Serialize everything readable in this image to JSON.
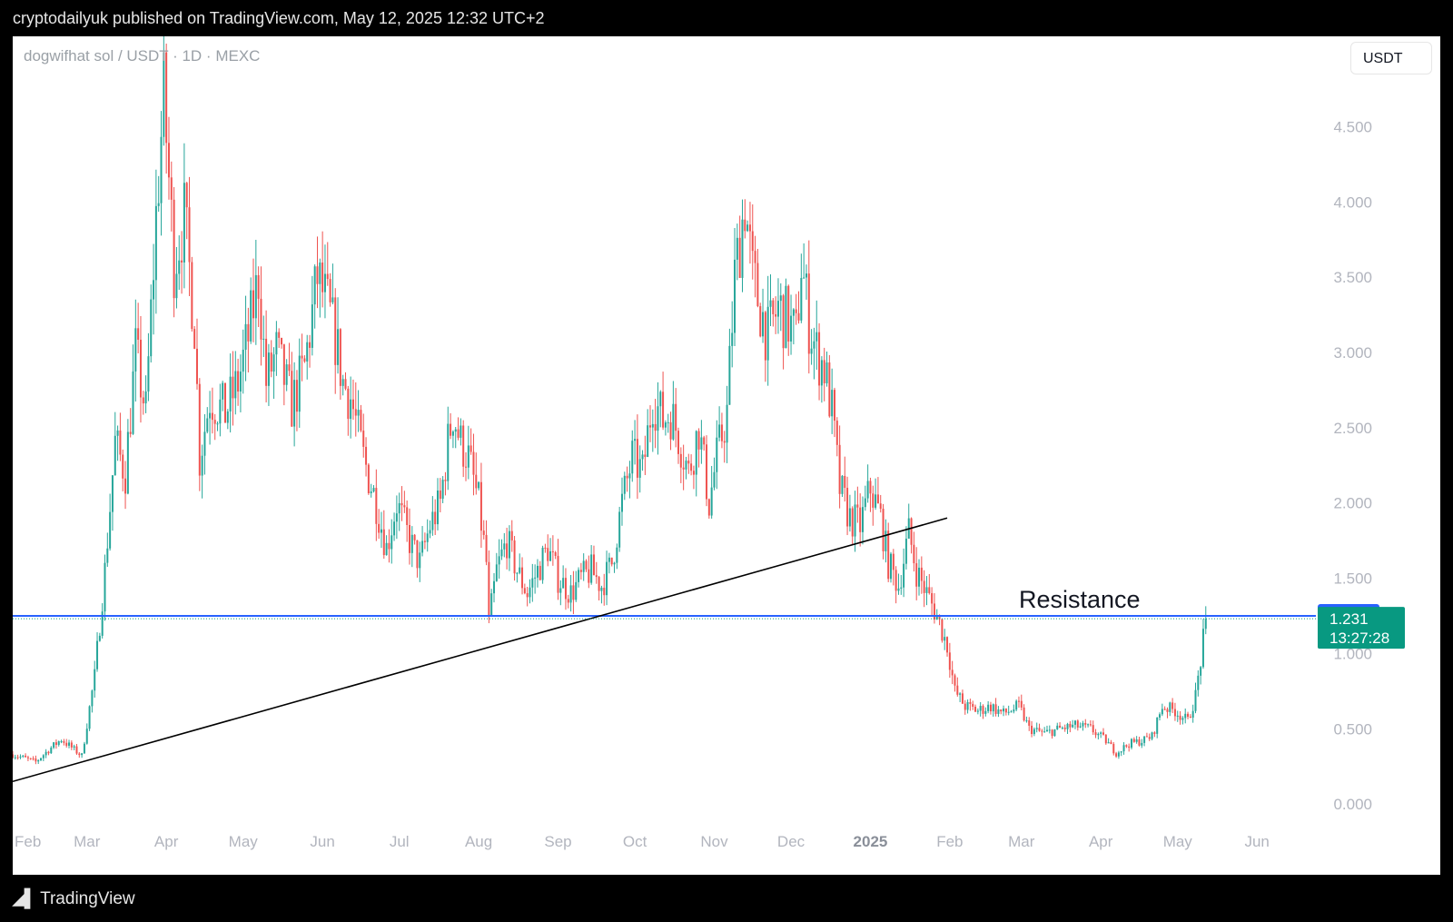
{
  "header": {
    "published_by": "cryptodailyuk published on TradingView.com, May 12, 2025 12:32 UTC+2"
  },
  "symbol": {
    "title": "dogwifhat sol / USDT · 1D · MEXC"
  },
  "currency_button": "USDT",
  "footer": {
    "brand": "TradingView"
  },
  "colors": {
    "up": "#26a69a",
    "down": "#ef5350",
    "resistance": "#2962ff",
    "trendline": "#000000",
    "price_badge": "#089981",
    "axis_text": "#b2b5be"
  },
  "chart_data": {
    "type": "candlestick",
    "title": "",
    "xlabel": "",
    "ylabel": "",
    "ylim": [
      -0.15,
      5.1
    ],
    "x_tick_labels": [
      "Feb",
      "Mar",
      "Apr",
      "May",
      "Jun",
      "Jul",
      "Aug",
      "Sep",
      "Oct",
      "Nov",
      "Dec",
      "2025",
      "Feb",
      "Mar",
      "Apr",
      "May",
      "Jun"
    ],
    "y_tick_values": [
      0.0,
      0.5,
      1.0,
      1.5,
      2.0,
      2.5,
      3.0,
      3.5,
      4.0,
      4.5
    ],
    "y_tick_labels": [
      "0.000",
      "0.500",
      "1.000",
      "1.500",
      "2.000",
      "2.500",
      "3.000",
      "3.500",
      "4.000",
      "4.500"
    ],
    "x_range": [
      "2024-02-01",
      "2025-06-24"
    ],
    "close_series": [
      [
        "2024-02-01",
        0.33
      ],
      [
        "2024-02-10",
        0.28
      ],
      [
        "2024-02-15",
        0.36
      ],
      [
        "2024-02-20",
        0.43
      ],
      [
        "2024-02-28",
        0.32
      ],
      [
        "2024-03-04",
        0.85
      ],
      [
        "2024-03-08",
        1.55
      ],
      [
        "2024-03-12",
        2.4
      ],
      [
        "2024-03-16",
        2.2
      ],
      [
        "2024-03-20",
        3.0
      ],
      [
        "2024-03-24",
        2.6
      ],
      [
        "2024-03-28",
        3.9
      ],
      [
        "2024-03-31",
        4.7
      ],
      [
        "2024-04-04",
        3.6
      ],
      [
        "2024-04-08",
        3.9
      ],
      [
        "2024-04-12",
        3.2
      ],
      [
        "2024-04-14",
        2.3
      ],
      [
        "2024-04-18",
        2.7
      ],
      [
        "2024-04-24",
        2.6
      ],
      [
        "2024-04-29",
        2.8
      ],
      [
        "2024-05-03",
        3.1
      ],
      [
        "2024-05-07",
        3.5
      ],
      [
        "2024-05-10",
        2.8
      ],
      [
        "2024-05-14",
        3.0
      ],
      [
        "2024-05-20",
        2.65
      ],
      [
        "2024-05-25",
        2.9
      ],
      [
        "2024-05-30",
        3.5
      ],
      [
        "2024-06-03",
        3.3
      ],
      [
        "2024-06-06",
        3.1
      ],
      [
        "2024-06-09",
        2.8
      ],
      [
        "2024-06-12",
        2.7
      ],
      [
        "2024-06-17",
        2.3
      ],
      [
        "2024-06-22",
        2.0
      ],
      [
        "2024-06-26",
        1.7
      ],
      [
        "2024-06-30",
        2.0
      ],
      [
        "2024-07-05",
        1.75
      ],
      [
        "2024-07-09",
        1.6
      ],
      [
        "2024-07-13",
        1.85
      ],
      [
        "2024-07-17",
        2.0
      ],
      [
        "2024-07-20",
        2.4
      ],
      [
        "2024-07-22",
        2.6
      ],
      [
        "2024-07-25",
        2.4
      ],
      [
        "2024-07-28",
        2.3
      ],
      [
        "2024-08-01",
        2.0
      ],
      [
        "2024-08-04",
        1.6
      ],
      [
        "2024-08-05",
        1.2
      ],
      [
        "2024-08-08",
        1.55
      ],
      [
        "2024-08-12",
        1.75
      ],
      [
        "2024-08-16",
        1.55
      ],
      [
        "2024-08-20",
        1.4
      ],
      [
        "2024-08-24",
        1.55
      ],
      [
        "2024-08-28",
        1.7
      ],
      [
        "2024-09-01",
        1.5
      ],
      [
        "2024-09-06",
        1.4
      ],
      [
        "2024-09-10",
        1.5
      ],
      [
        "2024-09-14",
        1.55
      ],
      [
        "2024-09-18",
        1.45
      ],
      [
        "2024-09-22",
        1.6
      ],
      [
        "2024-09-26",
        2.0
      ],
      [
        "2024-09-30",
        2.3
      ],
      [
        "2024-10-04",
        2.2
      ],
      [
        "2024-10-08",
        2.7
      ],
      [
        "2024-10-12",
        2.55
      ],
      [
        "2024-10-15",
        2.6
      ],
      [
        "2024-10-18",
        2.45
      ],
      [
        "2024-10-22",
        2.2
      ],
      [
        "2024-10-26",
        2.5
      ],
      [
        "2024-10-30",
        2.0
      ],
      [
        "2024-11-02",
        2.3
      ],
      [
        "2024-11-06",
        2.6
      ],
      [
        "2024-11-09",
        3.5
      ],
      [
        "2024-11-13",
        4.0
      ],
      [
        "2024-11-16",
        3.5
      ],
      [
        "2024-11-19",
        3.3
      ],
      [
        "2024-11-22",
        3.1
      ],
      [
        "2024-11-26",
        3.3
      ],
      [
        "2024-11-30",
        3.2
      ],
      [
        "2024-12-03",
        3.1
      ],
      [
        "2024-12-05",
        3.6
      ],
      [
        "2024-12-08",
        3.2
      ],
      [
        "2024-12-11",
        3.0
      ],
      [
        "2024-12-14",
        2.9
      ],
      [
        "2024-12-17",
        2.6
      ],
      [
        "2024-12-20",
        2.1
      ],
      [
        "2024-12-24",
        1.9
      ],
      [
        "2024-12-28",
        1.85
      ],
      [
        "2025-01-01",
        2.1
      ],
      [
        "2025-01-05",
        1.9
      ],
      [
        "2025-01-08",
        1.6
      ],
      [
        "2025-01-12",
        1.45
      ],
      [
        "2025-01-16",
        1.8
      ],
      [
        "2025-01-19",
        1.55
      ],
      [
        "2025-01-23",
        1.4
      ],
      [
        "2025-01-27",
        1.25
      ],
      [
        "2025-01-31",
        1.05
      ],
      [
        "2025-02-03",
        0.75
      ],
      [
        "2025-02-07",
        0.65
      ],
      [
        "2025-02-12",
        0.62
      ],
      [
        "2025-02-17",
        0.65
      ],
      [
        "2025-02-22",
        0.6
      ],
      [
        "2025-02-28",
        0.65
      ],
      [
        "2025-03-04",
        0.5
      ],
      [
        "2025-03-10",
        0.47
      ],
      [
        "2025-03-16",
        0.5
      ],
      [
        "2025-03-22",
        0.52
      ],
      [
        "2025-03-28",
        0.5
      ],
      [
        "2025-04-03",
        0.42
      ],
      [
        "2025-04-07",
        0.34
      ],
      [
        "2025-04-12",
        0.4
      ],
      [
        "2025-04-17",
        0.42
      ],
      [
        "2025-04-21",
        0.45
      ],
      [
        "2025-04-25",
        0.65
      ],
      [
        "2025-04-30",
        0.62
      ],
      [
        "2025-05-05",
        0.55
      ],
      [
        "2025-05-08",
        0.72
      ],
      [
        "2025-05-10",
        0.95
      ],
      [
        "2025-05-12",
        1.231
      ]
    ],
    "annotations": [
      {
        "type": "horizontal_line",
        "label": "Resistance",
        "value": 1.25
      },
      {
        "type": "trend_line",
        "from": [
          "2024-02-01",
          0.15
        ],
        "to": [
          "2025-01-31",
          1.9
        ]
      }
    ],
    "last_price": {
      "value": "1.231",
      "countdown": "13:27:28"
    },
    "level_badge": "1.250"
  }
}
